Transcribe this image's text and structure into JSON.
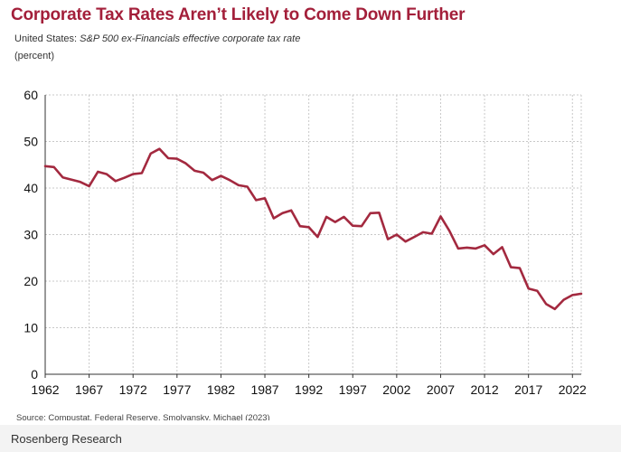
{
  "chart_data": {
    "type": "line",
    "title": "Corporate Tax Rates Aren’t Likely to Come Down Further",
    "subtitle_country": "United States:",
    "subtitle_series": "S&P 500 ex-Financials effective corporate tax rate",
    "unit_label": "(percent)",
    "xlabel": "",
    "ylabel": "(percent)",
    "xlim": [
      1962,
      2023
    ],
    "ylim": [
      0,
      60
    ],
    "yticks": [
      0,
      10,
      20,
      30,
      40,
      50,
      60
    ],
    "xticks": [
      1962,
      1967,
      1972,
      1977,
      1982,
      1987,
      1992,
      1997,
      2002,
      2007,
      2012,
      2017,
      2022
    ],
    "grid": true,
    "series": [
      {
        "name": "S&P 500 ex-Financials effective corporate tax rate",
        "color": "#a3293f",
        "x": [
          1962,
          1963,
          1964,
          1965,
          1966,
          1967,
          1968,
          1969,
          1970,
          1971,
          1972,
          1973,
          1974,
          1975,
          1976,
          1977,
          1978,
          1979,
          1980,
          1981,
          1982,
          1983,
          1984,
          1985,
          1986,
          1987,
          1988,
          1989,
          1990,
          1991,
          1992,
          1993,
          1994,
          1995,
          1996,
          1997,
          1998,
          1999,
          2000,
          2001,
          2002,
          2003,
          2004,
          2005,
          2006,
          2007,
          2008,
          2009,
          2010,
          2011,
          2012,
          2013,
          2014,
          2015,
          2016,
          2017,
          2018,
          2019,
          2020,
          2021,
          2022,
          2023
        ],
        "values": [
          44.7,
          44.5,
          42.3,
          41.8,
          41.3,
          40.4,
          43.5,
          43.0,
          41.5,
          42.2,
          43.0,
          43.2,
          47.4,
          48.4,
          46.4,
          46.3,
          45.3,
          43.7,
          43.3,
          41.7,
          42.6,
          41.7,
          40.6,
          40.3,
          37.4,
          37.8,
          33.5,
          34.6,
          35.2,
          31.8,
          31.6,
          29.5,
          33.8,
          32.7,
          33.8,
          31.9,
          31.8,
          34.6,
          34.7,
          29.0,
          30.0,
          28.5,
          29.5,
          30.5,
          30.2,
          33.9,
          30.8,
          27.0,
          27.2,
          27.0,
          27.7,
          25.8,
          27.3,
          23.0,
          22.8,
          18.4,
          17.9,
          15.1,
          14.0,
          16.0,
          17.0,
          17.3
        ]
      }
    ],
    "source": "Source: Compustat, Federal Reserve, Smolyansky, Michael (2023)",
    "brand": "Rosenberg Research"
  }
}
